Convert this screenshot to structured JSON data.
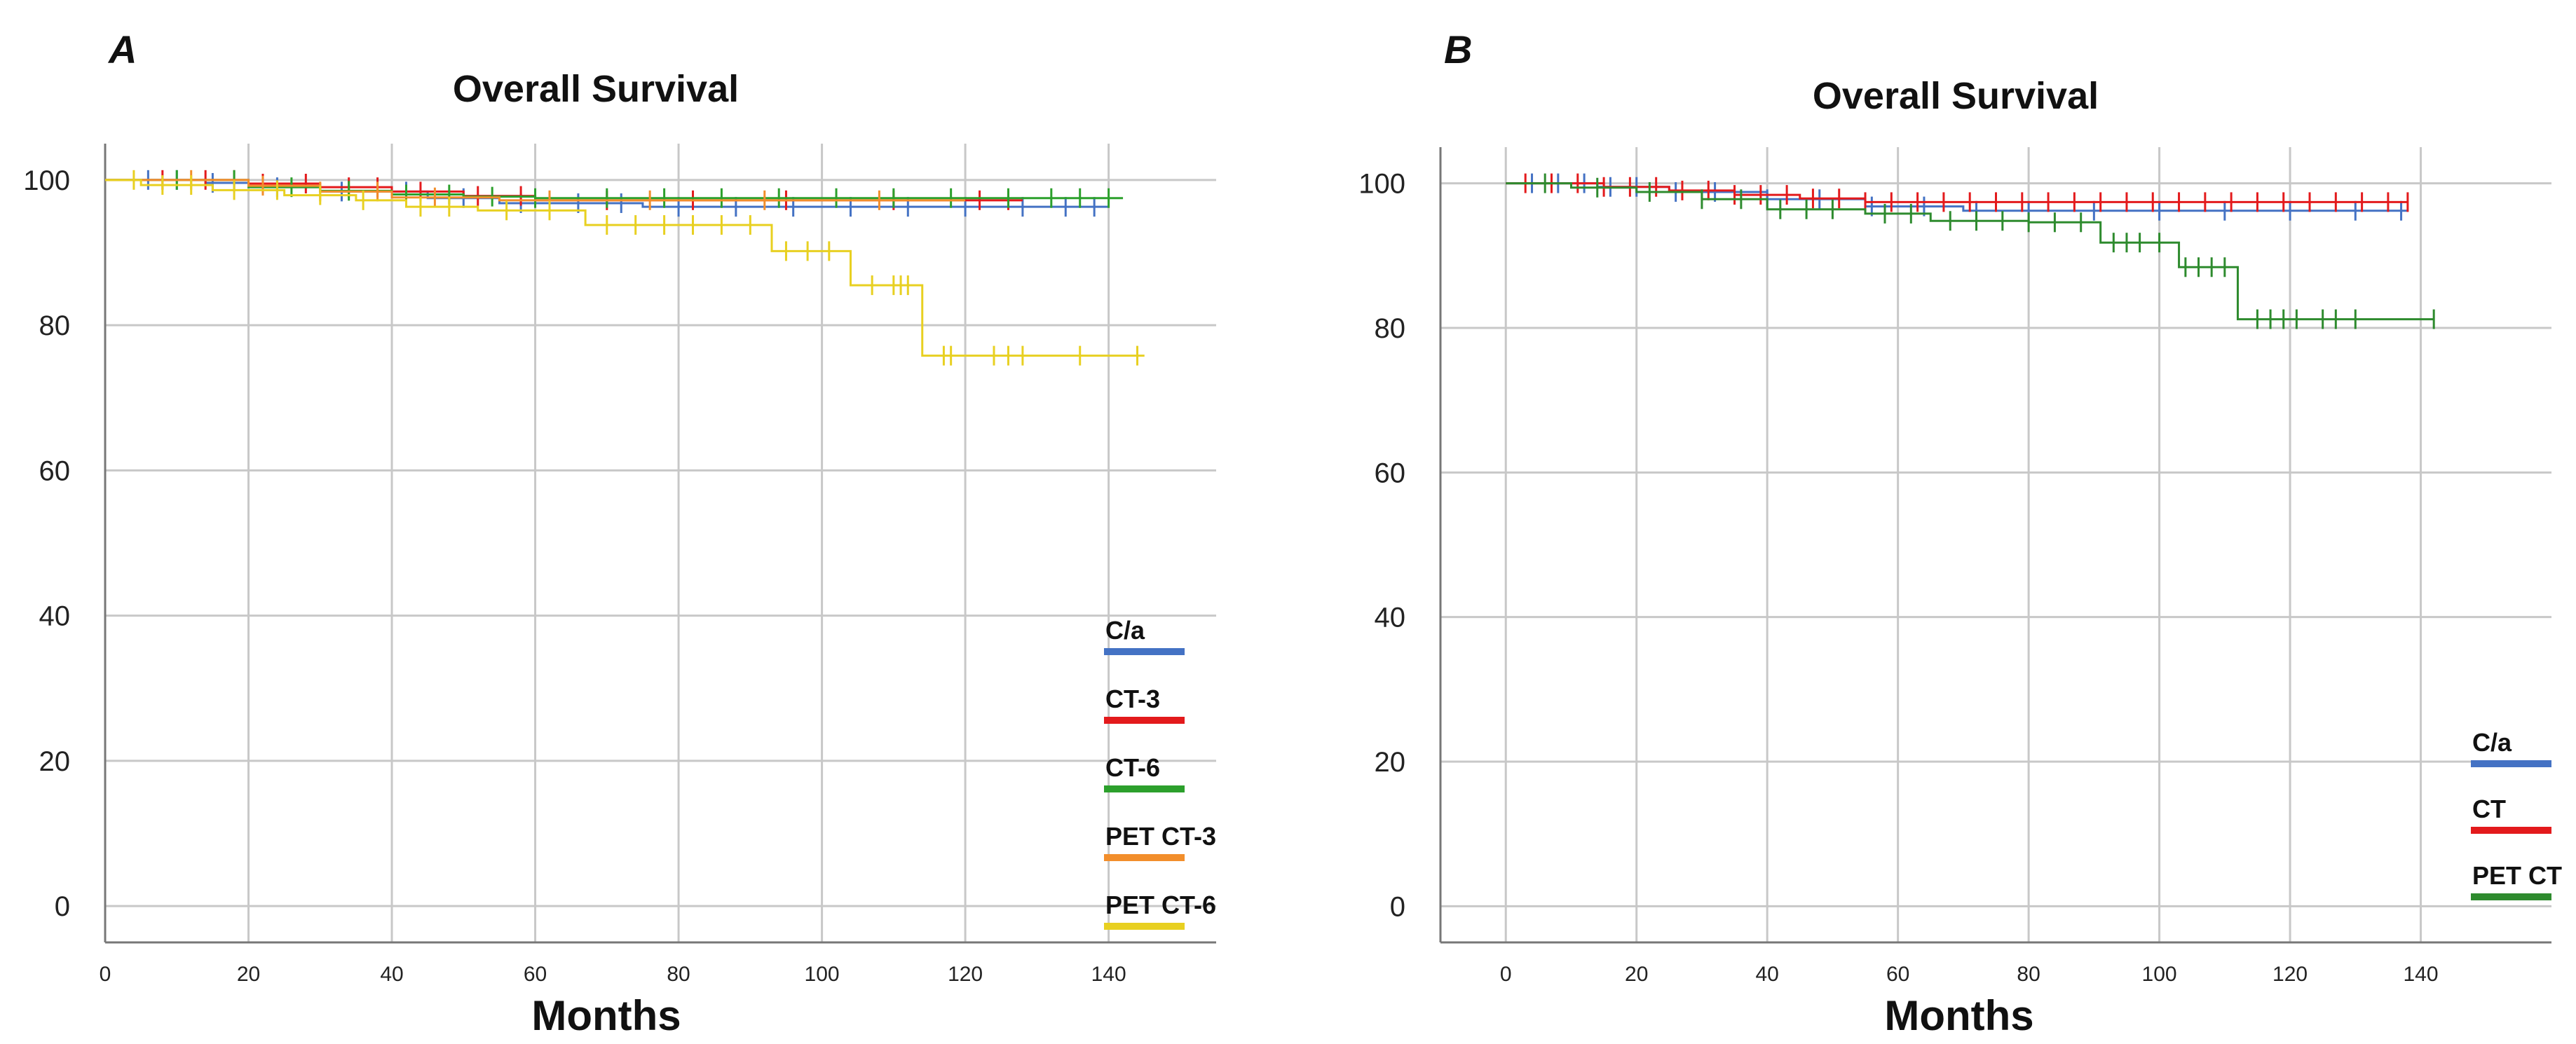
{
  "chart_data": [
    {
      "type": "line",
      "panel_label": "A",
      "title": "Overall Survival",
      "xlabel": "Months",
      "ylabel": "",
      "xlim": [
        0,
        155
      ],
      "ylim": [
        -5,
        105
      ],
      "xticks": [
        0,
        20,
        40,
        60,
        80,
        100,
        120,
        140
      ],
      "yticks": [
        0,
        20,
        40,
        60,
        80,
        100
      ],
      "series": [
        {
          "name": "C/a",
          "color": "#4472C4",
          "x": [
            0,
            14,
            20,
            30,
            45,
            55,
            75,
            140
          ],
          "y": [
            100,
            99.6,
            99,
            98.4,
            97.5,
            96.8,
            96.3,
            96.3
          ],
          "censor_x": [
            6,
            10,
            15,
            24,
            33,
            42,
            50,
            58,
            62,
            66,
            72,
            80,
            88,
            96,
            104,
            112,
            120,
            128,
            134,
            138
          ]
        },
        {
          "name": "CT-3",
          "color": "#E31A1C",
          "x": [
            0,
            20,
            30,
            40,
            50,
            60,
            128
          ],
          "y": [
            100,
            99.5,
            99,
            98.4,
            97.8,
            97.2,
            97.2
          ],
          "censor_x": [
            8,
            14,
            18,
            22,
            28,
            34,
            38,
            44,
            52,
            58,
            70,
            82,
            95,
            110,
            122,
            126
          ]
        },
        {
          "name": "CT-6",
          "color": "#2CA02C",
          "x": [
            0,
            20,
            30,
            40,
            50,
            60,
            142
          ],
          "y": [
            100,
            99,
            98.5,
            98,
            97.7,
            97.5,
            97.5
          ],
          "censor_x": [
            10,
            18,
            26,
            34,
            42,
            48,
            54,
            60,
            70,
            78,
            86,
            94,
            102,
            110,
            118,
            126,
            132,
            136,
            140
          ]
        },
        {
          "name": "PET CT-3",
          "color": "#F28E2B",
          "x": [
            0,
            20,
            30,
            40,
            55,
            70,
            120
          ],
          "y": [
            100,
            99.2,
            98.4,
            97.6,
            97.2,
            97.2,
            97.2
          ],
          "censor_x": [
            12,
            22,
            30,
            38,
            46,
            62,
            76,
            92,
            108
          ]
        },
        {
          "name": "PET CT-6",
          "color": "#E8D021",
          "x": [
            0,
            5,
            15,
            25,
            35,
            42,
            52,
            65,
            67,
            93,
            104,
            114,
            145
          ],
          "y": [
            100,
            99.3,
            98.6,
            97.9,
            97.2,
            96.3,
            95.8,
            95.8,
            93.8,
            90.2,
            85.5,
            75.8,
            75.8
          ],
          "censor_x": [
            4,
            8,
            12,
            18,
            24,
            30,
            36,
            44,
            48,
            56,
            62,
            70,
            74,
            78,
            82,
            86,
            90,
            95,
            98,
            101,
            107,
            110,
            111,
            112,
            117,
            118,
            124,
            126,
            128,
            136,
            144
          ]
        }
      ],
      "legend": [
        "C/a",
        "CT-3",
        "CT-6",
        "PET CT-3",
        "PET CT-6"
      ]
    },
    {
      "type": "line",
      "panel_label": "B",
      "title": "Overall Survival",
      "xlabel": "Months",
      "ylabel": "",
      "xlim": [
        -10,
        160
      ],
      "ylim": [
        -5,
        105
      ],
      "xticks": [
        0,
        20,
        40,
        60,
        80,
        100,
        120,
        140
      ],
      "yticks": [
        0,
        20,
        40,
        60,
        80,
        100
      ],
      "series": [
        {
          "name": "C/a",
          "color": "#4472C4",
          "x": [
            0,
            14,
            25,
            40,
            55,
            70,
            138
          ],
          "y": [
            100,
            99.5,
            98.8,
            97.8,
            96.8,
            96.2,
            96.2
          ],
          "censor_x": [
            4,
            8,
            12,
            16,
            20,
            26,
            32,
            40,
            48,
            56,
            64,
            72,
            80,
            90,
            100,
            110,
            120,
            130,
            137
          ]
        },
        {
          "name": "CT",
          "color": "#E31A1C",
          "x": [
            0,
            15,
            25,
            35,
            45,
            55,
            138
          ],
          "y": [
            100,
            99.5,
            99,
            98.4,
            97.9,
            97.4,
            97.4
          ],
          "censor_x": [
            3,
            7,
            11,
            15,
            19,
            23,
            27,
            31,
            35,
            39,
            43,
            47,
            51,
            55,
            59,
            63,
            67,
            71,
            75,
            79,
            83,
            87,
            91,
            95,
            99,
            103,
            107,
            111,
            115,
            119,
            123,
            127,
            131,
            135,
            138
          ]
        },
        {
          "name": "PET CT",
          "color": "#2E8B2E",
          "x": [
            0,
            10,
            20,
            30,
            40,
            55,
            65,
            80,
            91,
            103,
            112,
            142
          ],
          "y": [
            100,
            99.4,
            98.8,
            97.8,
            96.4,
            95.8,
            94.8,
            94.6,
            91.8,
            88.4,
            81.2,
            81.2
          ],
          "censor_x": [
            6,
            14,
            22,
            30,
            36,
            42,
            46,
            50,
            58,
            62,
            68,
            72,
            76,
            80,
            84,
            88,
            93,
            95,
            97,
            100,
            104,
            106,
            108,
            110,
            115,
            117,
            119,
            121,
            125,
            127,
            130,
            142
          ]
        }
      ],
      "legend": [
        "C/a",
        "CT",
        "PET CT"
      ]
    }
  ]
}
